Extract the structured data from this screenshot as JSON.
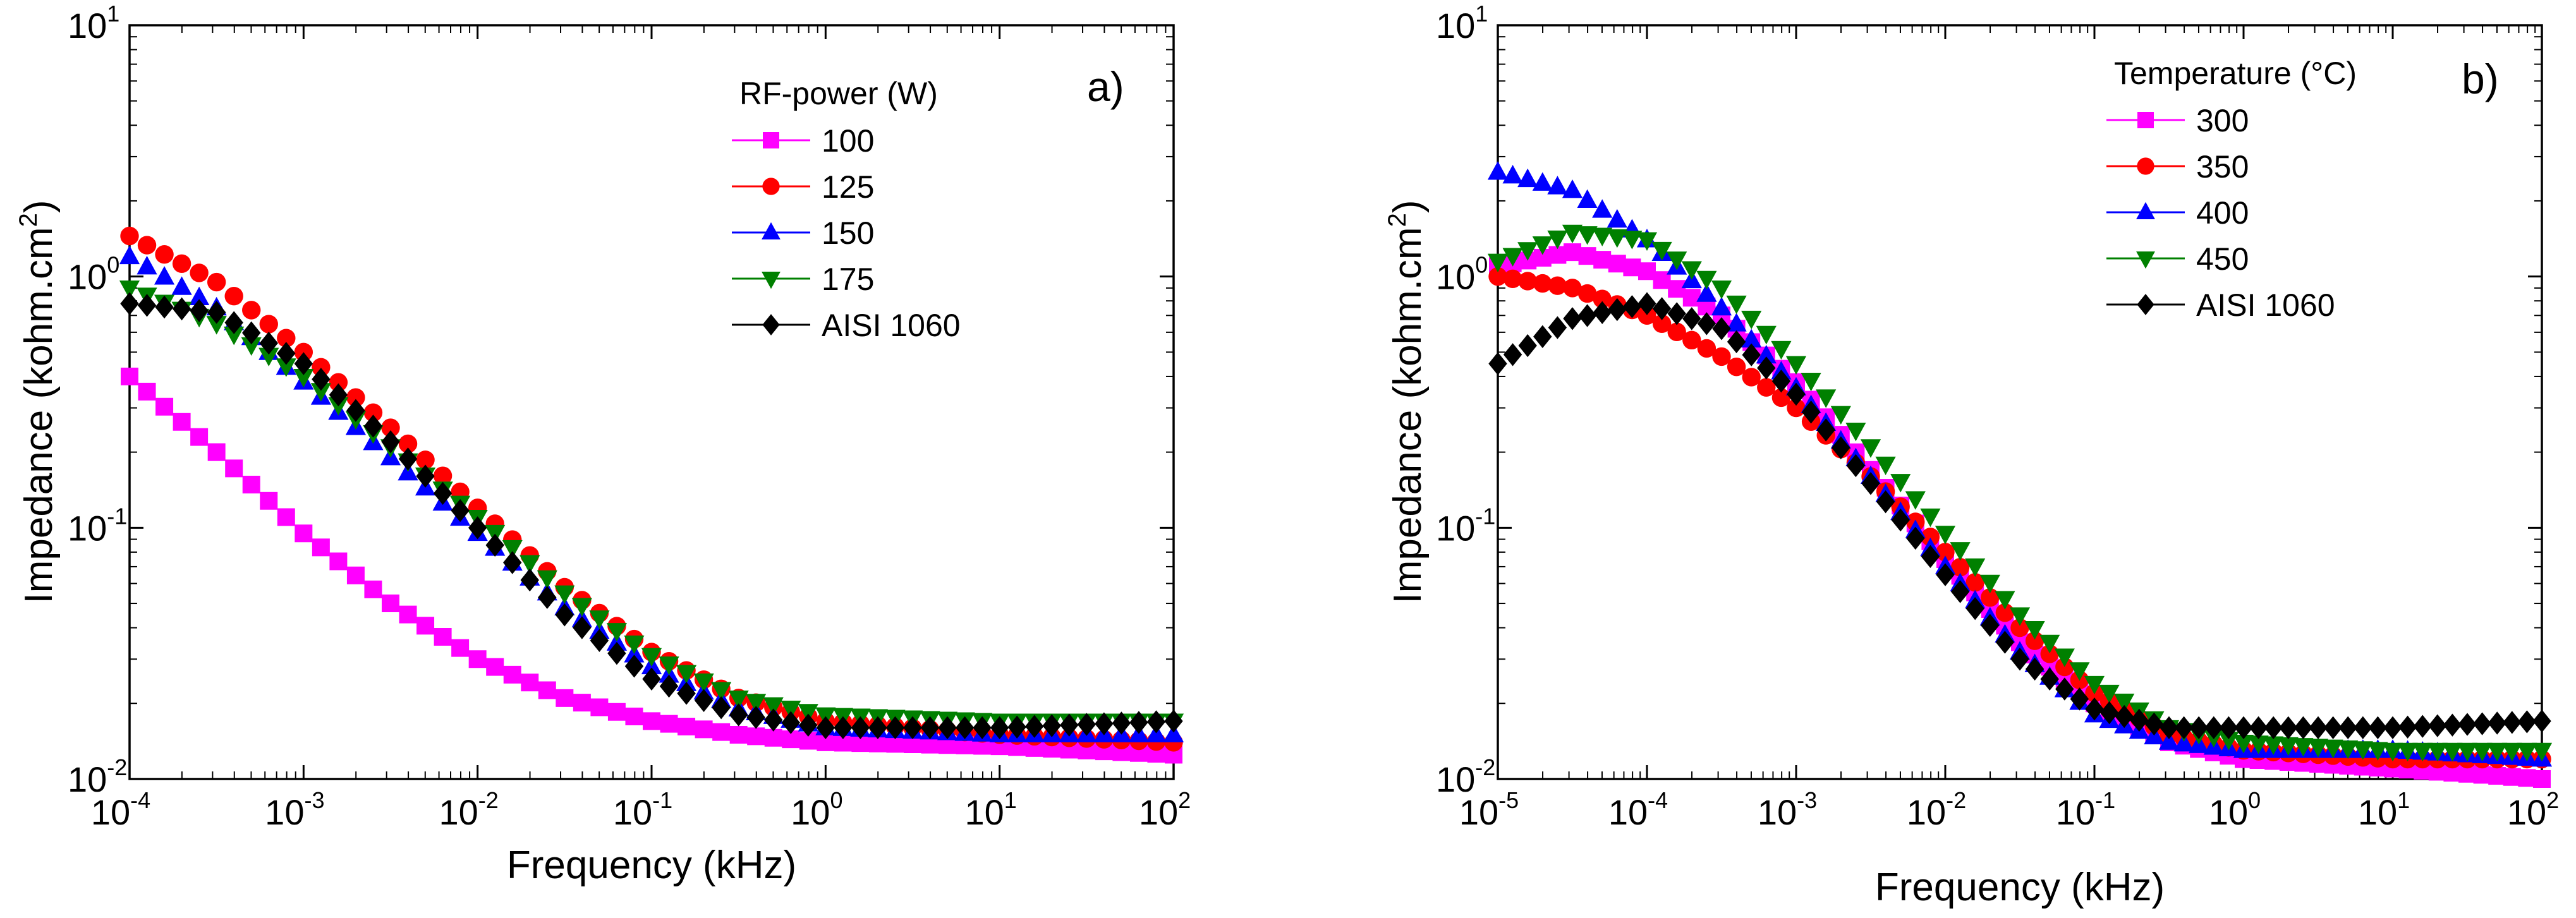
{
  "chart_data": [
    {
      "type": "scatter",
      "panel_label": "a)",
      "xlabel": "Frequency (kHz)",
      "ylabel": "Impedance (kohm.cm",
      "ylabel_sup": "2",
      "ylabel_close": ")",
      "xscale": "log",
      "yscale": "log",
      "xlim": [
        0.0001,
        100
      ],
      "ylim": [
        0.01,
        10
      ],
      "x_ticks": [
        {
          "base": "10",
          "exp": "-4"
        },
        {
          "base": "10",
          "exp": "-3"
        },
        {
          "base": "10",
          "exp": "-2"
        },
        {
          "base": "10",
          "exp": "-1"
        },
        {
          "base": "10",
          "exp": "0"
        },
        {
          "base": "10",
          "exp": "1"
        },
        {
          "base": "10",
          "exp": "2"
        }
      ],
      "y_ticks": [
        {
          "base": "10",
          "exp": "-2"
        },
        {
          "base": "10",
          "exp": "-1"
        },
        {
          "base": "10",
          "exp": "0"
        },
        {
          "base": "10",
          "exp": "1"
        }
      ],
      "legend_title": "RF-power (W)",
      "legend_position": "top-right",
      "series": [
        {
          "name": "100",
          "color": "#ff00ff",
          "marker": "square",
          "anchors": [
            [
              -4,
              0.4
            ],
            [
              -3.5,
              0.2
            ],
            [
              -3,
              0.095
            ],
            [
              -2.5,
              0.05
            ],
            [
              -2,
              0.03
            ],
            [
              -1.5,
              0.021
            ],
            [
              -1,
              0.017
            ],
            [
              -0.5,
              0.015
            ],
            [
              0,
              0.014
            ],
            [
              1,
              0.0135
            ],
            [
              2,
              0.0125
            ]
          ]
        },
        {
          "name": "125",
          "color": "#ff0000",
          "marker": "circle",
          "anchors": [
            [
              -4,
              1.45
            ],
            [
              -3.5,
              0.95
            ],
            [
              -3,
              0.5
            ],
            [
              -2.5,
              0.25
            ],
            [
              -2,
              0.12
            ],
            [
              -1.5,
              0.058
            ],
            [
              -1,
              0.032
            ],
            [
              -0.5,
              0.021
            ],
            [
              0,
              0.017
            ],
            [
              1,
              0.015
            ],
            [
              2,
              0.014
            ]
          ]
        },
        {
          "name": "150",
          "color": "#0000ff",
          "marker": "triangle-up",
          "anchors": [
            [
              -4,
              1.2
            ],
            [
              -3.5,
              0.75
            ],
            [
              -3,
              0.38
            ],
            [
              -2.5,
              0.19
            ],
            [
              -2,
              0.095
            ],
            [
              -1.5,
              0.048
            ],
            [
              -1,
              0.028
            ],
            [
              -0.5,
              0.019
            ],
            [
              0,
              0.016
            ],
            [
              1,
              0.015
            ],
            [
              2,
              0.015
            ]
          ]
        },
        {
          "name": "175",
          "color": "#008000",
          "marker": "triangle-down",
          "anchors": [
            [
              -4,
              0.9
            ],
            [
              -3.5,
              0.65
            ],
            [
              -3,
              0.4
            ],
            [
              -2.5,
              0.21
            ],
            [
              -2,
              0.11
            ],
            [
              -1.5,
              0.055
            ],
            [
              -1,
              0.031
            ],
            [
              -0.5,
              0.021
            ],
            [
              0,
              0.018
            ],
            [
              1,
              0.017
            ],
            [
              2,
              0.017
            ]
          ]
        },
        {
          "name": "AISI 1060",
          "color": "#000000",
          "marker": "diamond",
          "anchors": [
            [
              -4,
              0.78
            ],
            [
              -3.5,
              0.72
            ],
            [
              -3,
              0.45
            ],
            [
              -2.5,
              0.22
            ],
            [
              -2,
              0.1
            ],
            [
              -1.5,
              0.045
            ],
            [
              -1,
              0.025
            ],
            [
              -0.5,
              0.018
            ],
            [
              0,
              0.016
            ],
            [
              1,
              0.016
            ],
            [
              2,
              0.017
            ]
          ]
        }
      ]
    },
    {
      "type": "scatter",
      "panel_label": "b)",
      "xlabel": "Frequency (kHz)",
      "ylabel": "Impedance (kohm.cm",
      "ylabel_sup": "2",
      "ylabel_close": ")",
      "xscale": "log",
      "yscale": "log",
      "xlim": [
        1e-05,
        100
      ],
      "ylim": [
        0.01,
        10
      ],
      "x_ticks": [
        {
          "base": "10",
          "exp": "-5"
        },
        {
          "base": "10",
          "exp": "-4"
        },
        {
          "base": "10",
          "exp": "-3"
        },
        {
          "base": "10",
          "exp": "-2"
        },
        {
          "base": "10",
          "exp": "-1"
        },
        {
          "base": "10",
          "exp": "0"
        },
        {
          "base": "10",
          "exp": "1"
        },
        {
          "base": "10",
          "exp": "2"
        }
      ],
      "y_ticks": [
        {
          "base": "10",
          "exp": "-2"
        },
        {
          "base": "10",
          "exp": "-1"
        },
        {
          "base": "10",
          "exp": "0"
        },
        {
          "base": "10",
          "exp": "1"
        }
      ],
      "legend_title": "Temperature (°C)",
      "legend_position": "top-right",
      "series": [
        {
          "name": "300",
          "color": "#ff00ff",
          "marker": "square",
          "anchors": [
            [
              -5,
              1.1
            ],
            [
              -4.5,
              1.25
            ],
            [
              -4,
              1.05
            ],
            [
              -3.5,
              0.7
            ],
            [
              -3,
              0.38
            ],
            [
              -2.5,
              0.17
            ],
            [
              -2,
              0.075
            ],
            [
              -1.5,
              0.035
            ],
            [
              -1,
              0.02
            ],
            [
              -0.5,
              0.014
            ],
            [
              0,
              0.012
            ],
            [
              1,
              0.011
            ],
            [
              2,
              0.01
            ]
          ]
        },
        {
          "name": "350",
          "color": "#ff0000",
          "marker": "circle",
          "anchors": [
            [
              -5,
              1.0
            ],
            [
              -4.5,
              0.9
            ],
            [
              -4,
              0.7
            ],
            [
              -3.5,
              0.48
            ],
            [
              -3,
              0.3
            ],
            [
              -2.5,
              0.16
            ],
            [
              -2,
              0.08
            ],
            [
              -1.5,
              0.04
            ],
            [
              -1,
              0.022
            ],
            [
              -0.5,
              0.015
            ],
            [
              0,
              0.013
            ],
            [
              1,
              0.012
            ],
            [
              2,
              0.012
            ]
          ]
        },
        {
          "name": "400",
          "color": "#0000ff",
          "marker": "triangle-up",
          "anchors": [
            [
              -5,
              2.6
            ],
            [
              -4.5,
              2.2
            ],
            [
              -4,
              1.4
            ],
            [
              -3.5,
              0.75
            ],
            [
              -3,
              0.36
            ],
            [
              -2.5,
              0.16
            ],
            [
              -2,
              0.07
            ],
            [
              -1.5,
              0.032
            ],
            [
              -1,
              0.018
            ],
            [
              -0.5,
              0.014
            ],
            [
              0,
              0.013
            ],
            [
              1,
              0.013
            ],
            [
              2,
              0.012
            ]
          ]
        },
        {
          "name": "450",
          "color": "#008000",
          "marker": "triangle-down",
          "anchors": [
            [
              -5,
              1.15
            ],
            [
              -4.5,
              1.5
            ],
            [
              -4,
              1.4
            ],
            [
              -3.5,
              0.9
            ],
            [
              -3,
              0.45
            ],
            [
              -2.5,
              0.21
            ],
            [
              -2,
              0.095
            ],
            [
              -1.5,
              0.045
            ],
            [
              -1,
              0.024
            ],
            [
              -0.5,
              0.016
            ],
            [
              0,
              0.014
            ],
            [
              1,
              0.013
            ],
            [
              2,
              0.013
            ]
          ]
        },
        {
          "name": "AISI 1060",
          "color": "#000000",
          "marker": "diamond",
          "anchors": [
            [
              -5,
              0.45
            ],
            [
              -4.5,
              0.68
            ],
            [
              -4,
              0.78
            ],
            [
              -3.5,
              0.62
            ],
            [
              -3,
              0.34
            ],
            [
              -2.5,
              0.15
            ],
            [
              -2,
              0.065
            ],
            [
              -1.5,
              0.03
            ],
            [
              -1,
              0.019
            ],
            [
              -0.5,
              0.016
            ],
            [
              0,
              0.016
            ],
            [
              1,
              0.016
            ],
            [
              2,
              0.017
            ]
          ]
        }
      ]
    }
  ]
}
